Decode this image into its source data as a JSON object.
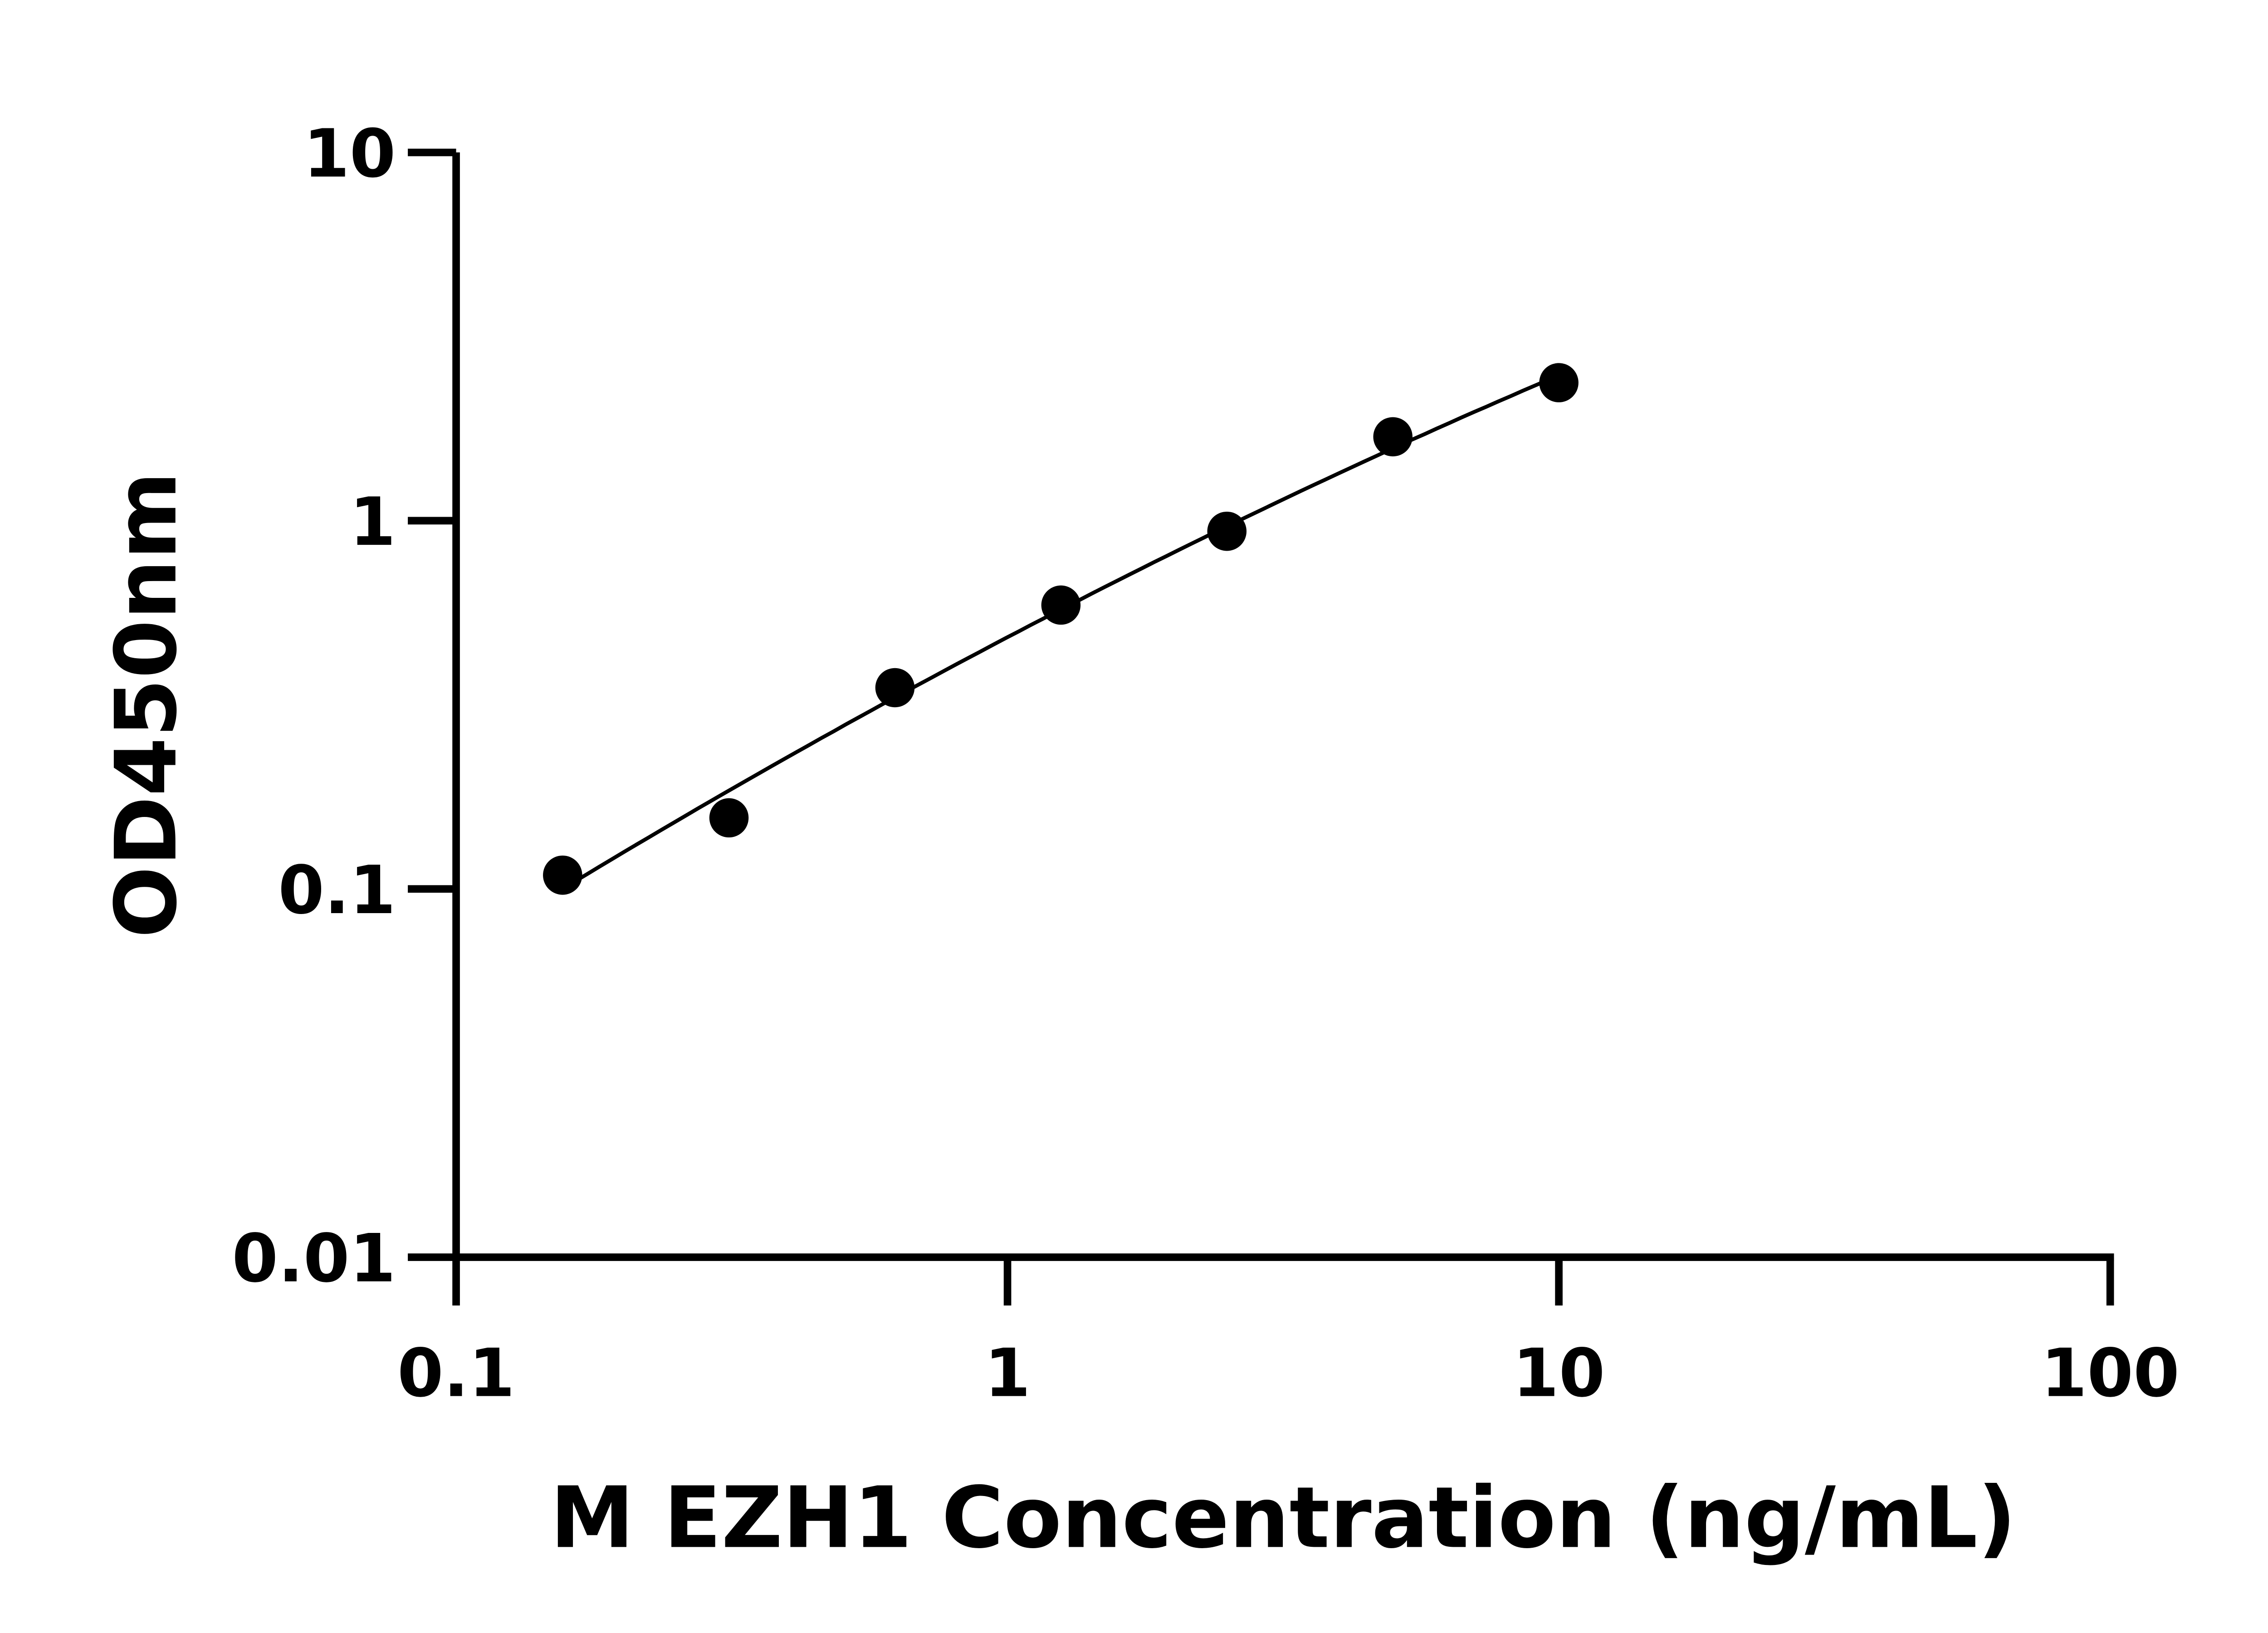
{
  "chart_data": {
    "type": "scatter",
    "title": "",
    "xlabel": "M EZH1 Concentration (ng/mL)",
    "ylabel": "OD450nm",
    "x_scale": "log",
    "y_scale": "log",
    "xlim": [
      0.1,
      100
    ],
    "ylim": [
      0.01,
      10
    ],
    "x_ticks": [
      "0.1",
      "1",
      "10",
      "100"
    ],
    "y_ticks": [
      "0.01",
      "0.1",
      "1",
      "10"
    ],
    "x_tick_values": [
      0.1,
      1,
      10,
      100
    ],
    "y_tick_values": [
      0.01,
      0.1,
      1,
      10
    ],
    "grid": false,
    "legend": "none",
    "fit_curve": true,
    "marker_color": "#000000",
    "series": [
      {
        "x": [
          0.156,
          0.3125,
          0.625,
          1.25,
          2.5,
          5,
          10
        ],
        "y": [
          0.109,
          0.156,
          0.352,
          0.59,
          0.936,
          1.69,
          2.37
        ]
      }
    ]
  }
}
